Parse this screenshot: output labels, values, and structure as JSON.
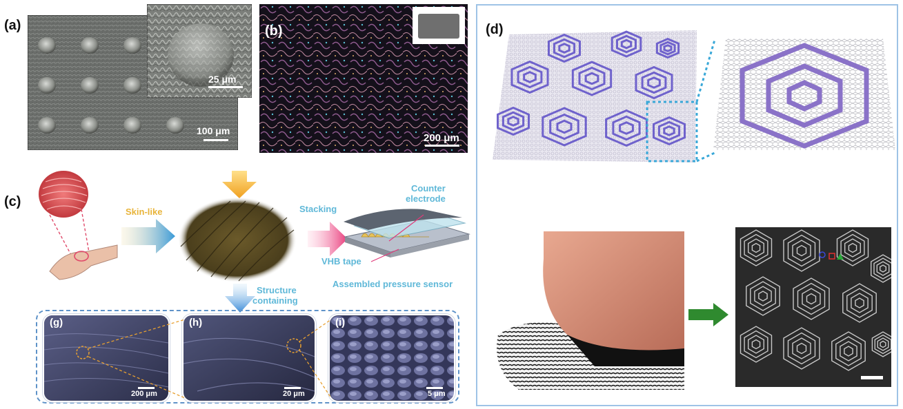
{
  "panels": {
    "a": {
      "label": "(a)",
      "scale_main": "100 μm",
      "scale_inset": "25 μm"
    },
    "b": {
      "label": "(b)",
      "scale": "200 μm"
    },
    "c": {
      "label": "(c)",
      "skin_like": "Skin-like",
      "stacking": "Stacking",
      "counter_electrode_line1": "Counter",
      "counter_electrode_line2": "electrode",
      "vhb_tape": "VHB tape",
      "assembled": "Assembled pressure sensor",
      "structure_line1": "Structure",
      "structure_line2": "containing"
    },
    "g": {
      "label": "(g)",
      "scale": "200 μm"
    },
    "h": {
      "label": "(h)",
      "scale": "20 μm"
    },
    "i": {
      "label": "(i)",
      "scale": "5 μm"
    },
    "d": {
      "label": "(d)"
    }
  },
  "colors": {
    "hex_purple": "#7b6fd0",
    "cyan_label": "#5fb8d8",
    "gold_label": "#e8b43a",
    "frame_blue": "#9ec3e6",
    "arrow_green": "#2f8a2f"
  }
}
